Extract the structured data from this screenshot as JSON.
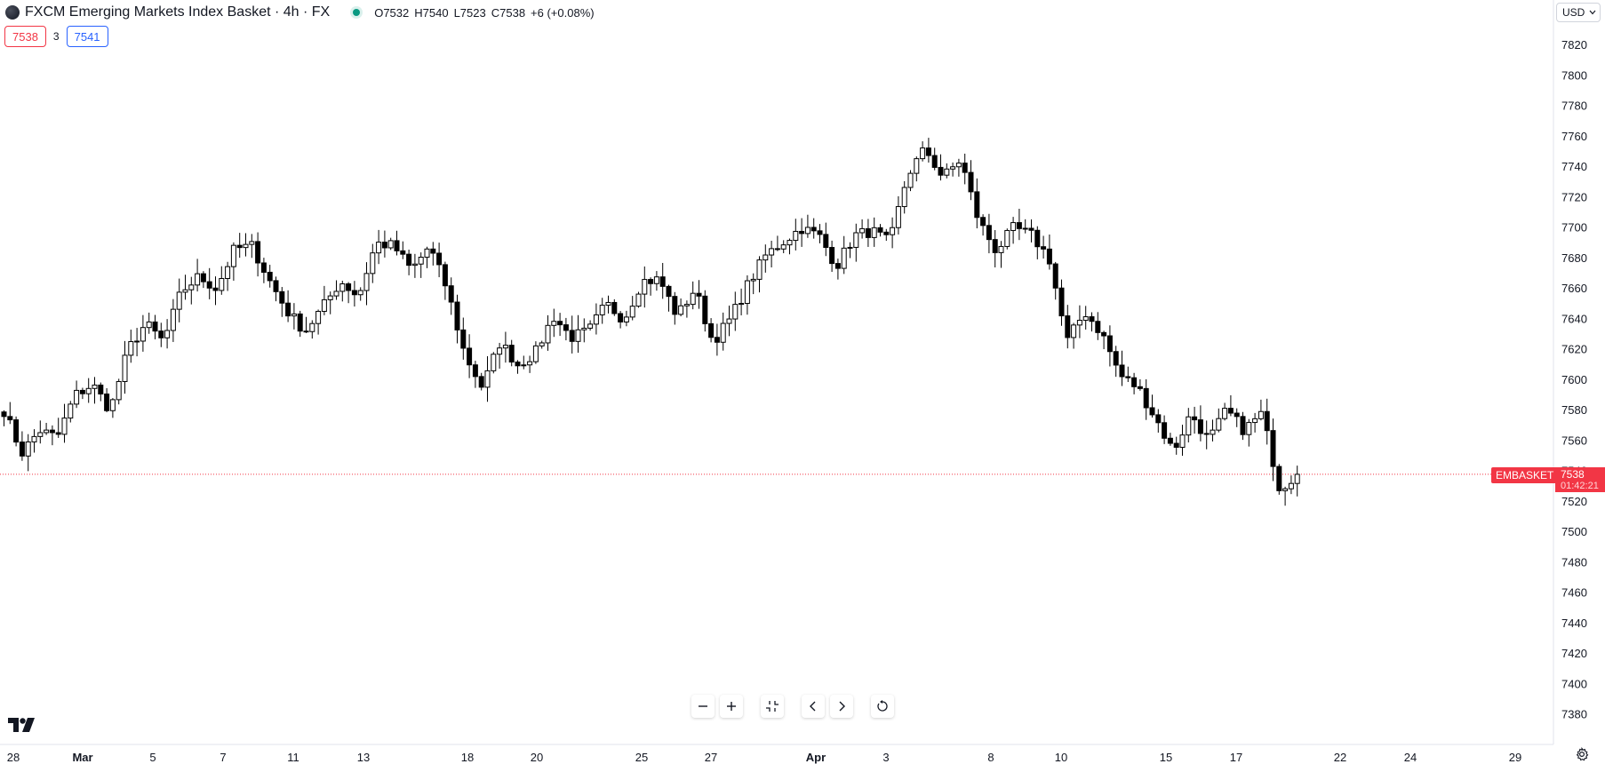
{
  "header": {
    "symbol_title": "FXCM Emerging Markets Index Basket · 4h · FX",
    "ohlc": {
      "o": "O7532",
      "h": "H7540",
      "l": "L7523",
      "c": "C7538",
      "change": "+6 (+0.08%)"
    },
    "sell_price": "7538",
    "spread": "3",
    "buy_price": "7541",
    "currency": "USD"
  },
  "last_price": {
    "symbol": "EMBASKET",
    "value": "7538",
    "countdown": "01:42:21"
  },
  "icons": {
    "logo": "symbol-logo-icon",
    "live": "market-open-dot-icon",
    "zoom_out": "minus-icon",
    "zoom_in": "plus-icon",
    "reset": "collapse-icon",
    "left": "chevron-left-icon",
    "right": "chevron-right-icon",
    "refresh": "reset-icon",
    "settings": "gear-icon",
    "brand": "tradingview-logo-icon"
  },
  "colors": {
    "up_body": "#ffffff",
    "down_body": "#000000",
    "wick": "#000000",
    "last_line": "#f23645",
    "live": "#089981"
  },
  "chart_data": {
    "type": "candlestick",
    "interval": "4h",
    "ylim": [
      7370,
      7830
    ],
    "y_ticks": [
      7380,
      7400,
      7420,
      7440,
      7460,
      7480,
      7500,
      7520,
      7540,
      7560,
      7580,
      7600,
      7620,
      7640,
      7660,
      7680,
      7700,
      7720,
      7740,
      7760,
      7780,
      7800,
      7820
    ],
    "x_ticks": [
      {
        "label": "28",
        "bold": false
      },
      {
        "label": "Mar",
        "bold": true
      },
      {
        "label": "5",
        "bold": false
      },
      {
        "label": "7",
        "bold": false
      },
      {
        "label": "11",
        "bold": false
      },
      {
        "label": "13",
        "bold": false
      },
      {
        "label": "18",
        "bold": false
      },
      {
        "label": "20",
        "bold": false
      },
      {
        "label": "25",
        "bold": false
      },
      {
        "label": "27",
        "bold": false
      },
      {
        "label": "Apr",
        "bold": true
      },
      {
        "label": "3",
        "bold": false
      },
      {
        "label": "8",
        "bold": false
      },
      {
        "label": "10",
        "bold": false
      },
      {
        "label": "15",
        "bold": false
      },
      {
        "label": "17",
        "bold": false
      },
      {
        "label": "22",
        "bold": false
      },
      {
        "label": "24",
        "bold": false
      },
      {
        "label": "29",
        "bold": false
      }
    ],
    "last_value": 7538,
    "close_path": [
      7580,
      7552,
      7567,
      7562,
      7590,
      7597,
      7580,
      7620,
      7637,
      7625,
      7658,
      7668,
      7660,
      7686,
      7688,
      7665,
      7645,
      7632,
      7648,
      7665,
      7655,
      7690,
      7688,
      7672,
      7688,
      7660,
      7617,
      7595,
      7625,
      7610,
      7618,
      7642,
      7628,
      7632,
      7650,
      7640,
      7665,
      7666,
      7642,
      7660,
      7625,
      7640,
      7663,
      7682,
      7691,
      7700,
      7695,
      7675,
      7695,
      7698,
      7690,
      7735,
      7752,
      7733,
      7745,
      7705,
      7685,
      7700,
      7695,
      7680,
      7625,
      7645,
      7630,
      7603,
      7595,
      7575,
      7553,
      7578,
      7560,
      7580,
      7567,
      7578,
      7529,
      7538
    ]
  }
}
